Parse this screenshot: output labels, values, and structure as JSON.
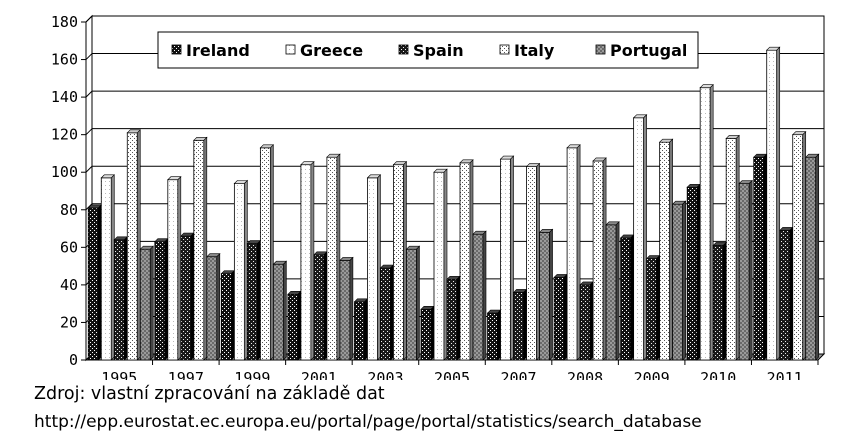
{
  "chart_data": {
    "type": "bar",
    "categories": [
      "1995",
      "1997",
      "1999",
      "2001",
      "2003",
      "2005",
      "2007",
      "2008",
      "2009",
      "2010",
      "2011"
    ],
    "series": [
      {
        "name": "Ireland",
        "values": [
          81,
          63,
          46,
          35,
          31,
          27,
          25,
          44,
          65,
          92,
          108
        ]
      },
      {
        "name": "Greece",
        "values": [
          97,
          96,
          94,
          104,
          97,
          100,
          107,
          113,
          129,
          145,
          165
        ]
      },
      {
        "name": "Spain",
        "values": [
          64,
          66,
          62,
          56,
          49,
          43,
          36,
          40,
          54,
          61,
          69
        ]
      },
      {
        "name": "Italy",
        "values": [
          121,
          117,
          113,
          108,
          104,
          105,
          103,
          106,
          116,
          118,
          120
        ]
      },
      {
        "name": "Portugal",
        "values": [
          59,
          55,
          51,
          53,
          59,
          67,
          68,
          72,
          83,
          94,
          108
        ]
      }
    ],
    "ylim": [
      0,
      180
    ],
    "yticks": [
      0,
      20,
      40,
      60,
      80,
      100,
      120,
      140,
      160,
      180
    ],
    "grid": true,
    "legend_position": "top-center",
    "title": "",
    "xlabel": "",
    "ylabel": ""
  },
  "source": {
    "line1": "Zdroj: vlastní zpracování na základě dat",
    "line2": "http://epp.eurostat.ec.europa.eu/portal/page/portal/statistics/search_database"
  }
}
